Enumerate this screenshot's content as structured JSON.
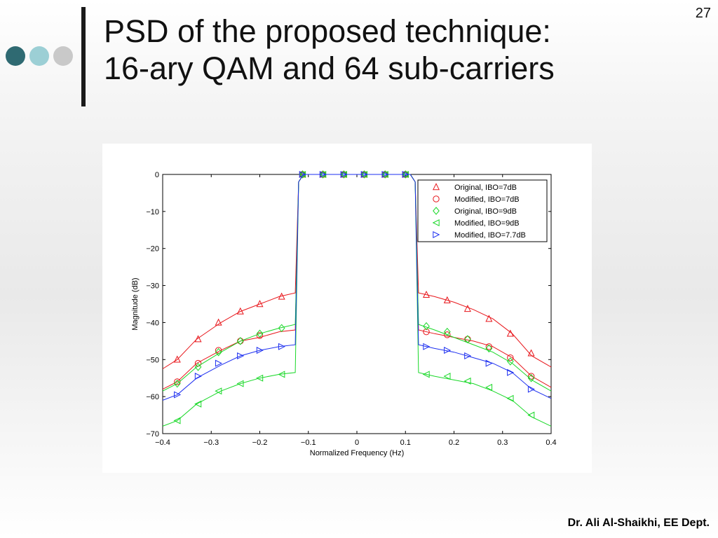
{
  "slide": {
    "title_line1": "PSD of the proposed technique:",
    "title_line2": "16-ary QAM and 64 sub-carriers",
    "page_number": "27",
    "footer": "Dr. Ali Al-Shaikhi, EE Dept.",
    "decoration_colors": [
      "#2f6a72",
      "#9ccfd5",
      "#c9c9c9"
    ]
  },
  "chart_data": {
    "type": "line",
    "title": "",
    "xlabel": "Normalized Frequency (Hz)",
    "ylabel": "Magnitude (dB)",
    "xlim": [
      -0.4,
      0.4
    ],
    "ylim": [
      -70,
      0
    ],
    "xticks": [
      -0.4,
      -0.3,
      -0.2,
      -0.1,
      0,
      0.1,
      0.2,
      0.3,
      0.4
    ],
    "xtick_labels": [
      "−0.4",
      "−0.3",
      "−0.2",
      "−0.1",
      "0",
      "0.1",
      "0.2",
      "0.3",
      "0.4"
    ],
    "yticks": [
      0,
      -10,
      -20,
      -30,
      -40,
      -50,
      -60,
      -70
    ],
    "ytick_labels": [
      "0",
      "−10",
      "−20",
      "−30",
      "−40",
      "−50",
      "−60",
      "−70"
    ],
    "grid": false,
    "legend_position": "top-right",
    "series": [
      {
        "name": "Original, IBO=7dB",
        "color": "#e8161b",
        "marker": "triangle-up",
        "x": [
          -0.4,
          -0.37,
          -0.33,
          -0.28,
          -0.24,
          -0.2,
          -0.16,
          -0.127,
          -0.12,
          -0.11,
          0.11,
          0.12,
          0.127,
          0.16,
          0.2,
          0.24,
          0.28,
          0.32,
          0.36,
          0.4
        ],
        "y": [
          -52.5,
          -50,
          -44.5,
          -40,
          -37,
          -35,
          -33,
          -32,
          -2,
          0,
          0,
          -2,
          -32,
          -33,
          -34.5,
          -36.5,
          -39,
          -43,
          -49,
          -52
        ],
        "marker_x": [
          -0.37,
          -0.327,
          -0.285,
          -0.24,
          -0.2,
          -0.155,
          -0.112,
          -0.07,
          -0.027,
          0.015,
          0.058,
          0.1,
          0.143,
          0.186,
          0.228,
          0.272,
          0.316,
          0.359
        ],
        "marker_y": [
          -50,
          -44.5,
          -40,
          -37,
          -35,
          -33,
          0,
          0,
          0,
          0,
          0,
          0,
          -32.5,
          -34,
          -36.3,
          -39,
          -43,
          -48.3
        ]
      },
      {
        "name": "Modified, IBO=7dB",
        "color": "#e8161b",
        "marker": "circle",
        "x": [
          -0.4,
          -0.37,
          -0.33,
          -0.28,
          -0.24,
          -0.2,
          -0.16,
          -0.127,
          -0.12,
          -0.11,
          0.11,
          0.12,
          0.127,
          0.16,
          0.2,
          0.24,
          0.28,
          0.32,
          0.36,
          0.4
        ],
        "y": [
          -58,
          -56,
          -51,
          -47.5,
          -45,
          -44,
          -42.5,
          -42,
          -2,
          0,
          0,
          -2,
          -42,
          -43,
          -44,
          -45,
          -46.5,
          -49.5,
          -54.5,
          -57.5
        ],
        "marker_x": [
          -0.37,
          -0.327,
          -0.285,
          -0.24,
          -0.2,
          -0.112,
          -0.07,
          -0.027,
          0.015,
          0.058,
          0.1,
          0.143,
          0.186,
          0.228,
          0.272,
          0.316,
          0.359
        ],
        "marker_y": [
          -56,
          -51,
          -47.5,
          -45,
          -43.5,
          0,
          0,
          0,
          0,
          0,
          0,
          -42.5,
          -43.3,
          -44.5,
          -46.5,
          -49.5,
          -54.5
        ]
      },
      {
        "name": "Original, IBO=9dB",
        "color": "#19d828",
        "marker": "diamond",
        "x": [
          -0.4,
          -0.37,
          -0.33,
          -0.28,
          -0.24,
          -0.2,
          -0.16,
          -0.127,
          -0.12,
          -0.11,
          0.11,
          0.12,
          0.127,
          0.16,
          0.2,
          0.24,
          0.28,
          0.32,
          0.36,
          0.4
        ],
        "y": [
          -58.5,
          -56.5,
          -52,
          -48,
          -45,
          -43,
          -41.5,
          -40.5,
          -2,
          0,
          0,
          -2,
          -40.5,
          -42,
          -44,
          -46,
          -48,
          -51,
          -55.5,
          -58.5
        ],
        "marker_x": [
          -0.37,
          -0.327,
          -0.285,
          -0.24,
          -0.2,
          -0.155,
          -0.112,
          -0.07,
          -0.027,
          0.015,
          0.058,
          0.1,
          0.143,
          0.186,
          0.228,
          0.272,
          0.316,
          0.359
        ],
        "marker_y": [
          -56.5,
          -52,
          -48,
          -45,
          -43,
          -41.5,
          0,
          0,
          0,
          0,
          0,
          0,
          -41,
          -42.5,
          -44.5,
          -47,
          -50.5,
          -55
        ]
      },
      {
        "name": "Modified, IBO=9dB",
        "color": "#19d828",
        "marker": "triangle-left",
        "x": [
          -0.4,
          -0.37,
          -0.33,
          -0.28,
          -0.24,
          -0.2,
          -0.16,
          -0.127,
          -0.12,
          -0.11,
          0.11,
          0.12,
          0.127,
          0.16,
          0.2,
          0.24,
          0.28,
          0.32,
          0.36,
          0.4
        ],
        "y": [
          -68,
          -66.5,
          -62,
          -58.5,
          -56.5,
          -55,
          -54,
          -53.5,
          -2,
          0,
          0,
          -2,
          -53.5,
          -54.5,
          -55.5,
          -56.5,
          -58.5,
          -61,
          -65.5,
          -68
        ],
        "marker_x": [
          -0.37,
          -0.327,
          -0.285,
          -0.24,
          -0.2,
          -0.155,
          -0.112,
          -0.07,
          -0.027,
          0.015,
          0.058,
          0.1,
          0.143,
          0.186,
          0.228,
          0.272,
          0.316,
          0.359
        ],
        "marker_y": [
          -66.5,
          -62,
          -58.5,
          -56.5,
          -55,
          -54,
          0,
          0,
          0,
          0,
          0,
          0,
          -54,
          -54.5,
          -55.8,
          -57.5,
          -60.5,
          -65
        ]
      },
      {
        "name": "Modified, IBO=7.7dB",
        "color": "#1d2ff0",
        "marker": "triangle-right",
        "x": [
          -0.4,
          -0.37,
          -0.33,
          -0.28,
          -0.24,
          -0.2,
          -0.16,
          -0.127,
          -0.12,
          -0.11,
          0.11,
          0.12,
          0.127,
          0.16,
          0.2,
          0.24,
          0.28,
          0.32,
          0.36,
          0.4
        ],
        "y": [
          -61,
          -59.5,
          -55,
          -51.5,
          -49,
          -47.5,
          -46.5,
          -46,
          -2,
          0,
          0,
          -2,
          -46,
          -47,
          -48,
          -49.5,
          -51,
          -53.5,
          -58,
          -60.5
        ],
        "marker_x": [
          -0.37,
          -0.327,
          -0.285,
          -0.24,
          -0.2,
          -0.155,
          -0.112,
          -0.07,
          -0.027,
          0.015,
          0.058,
          0.1,
          0.143,
          0.186,
          0.228,
          0.272,
          0.316,
          0.359
        ],
        "marker_y": [
          -59.5,
          -54.5,
          -51,
          -49,
          -47.5,
          -46.5,
          0,
          0,
          0,
          0,
          0,
          0,
          -46.5,
          -47.5,
          -49,
          -51,
          -53.5,
          -58
        ]
      }
    ]
  }
}
